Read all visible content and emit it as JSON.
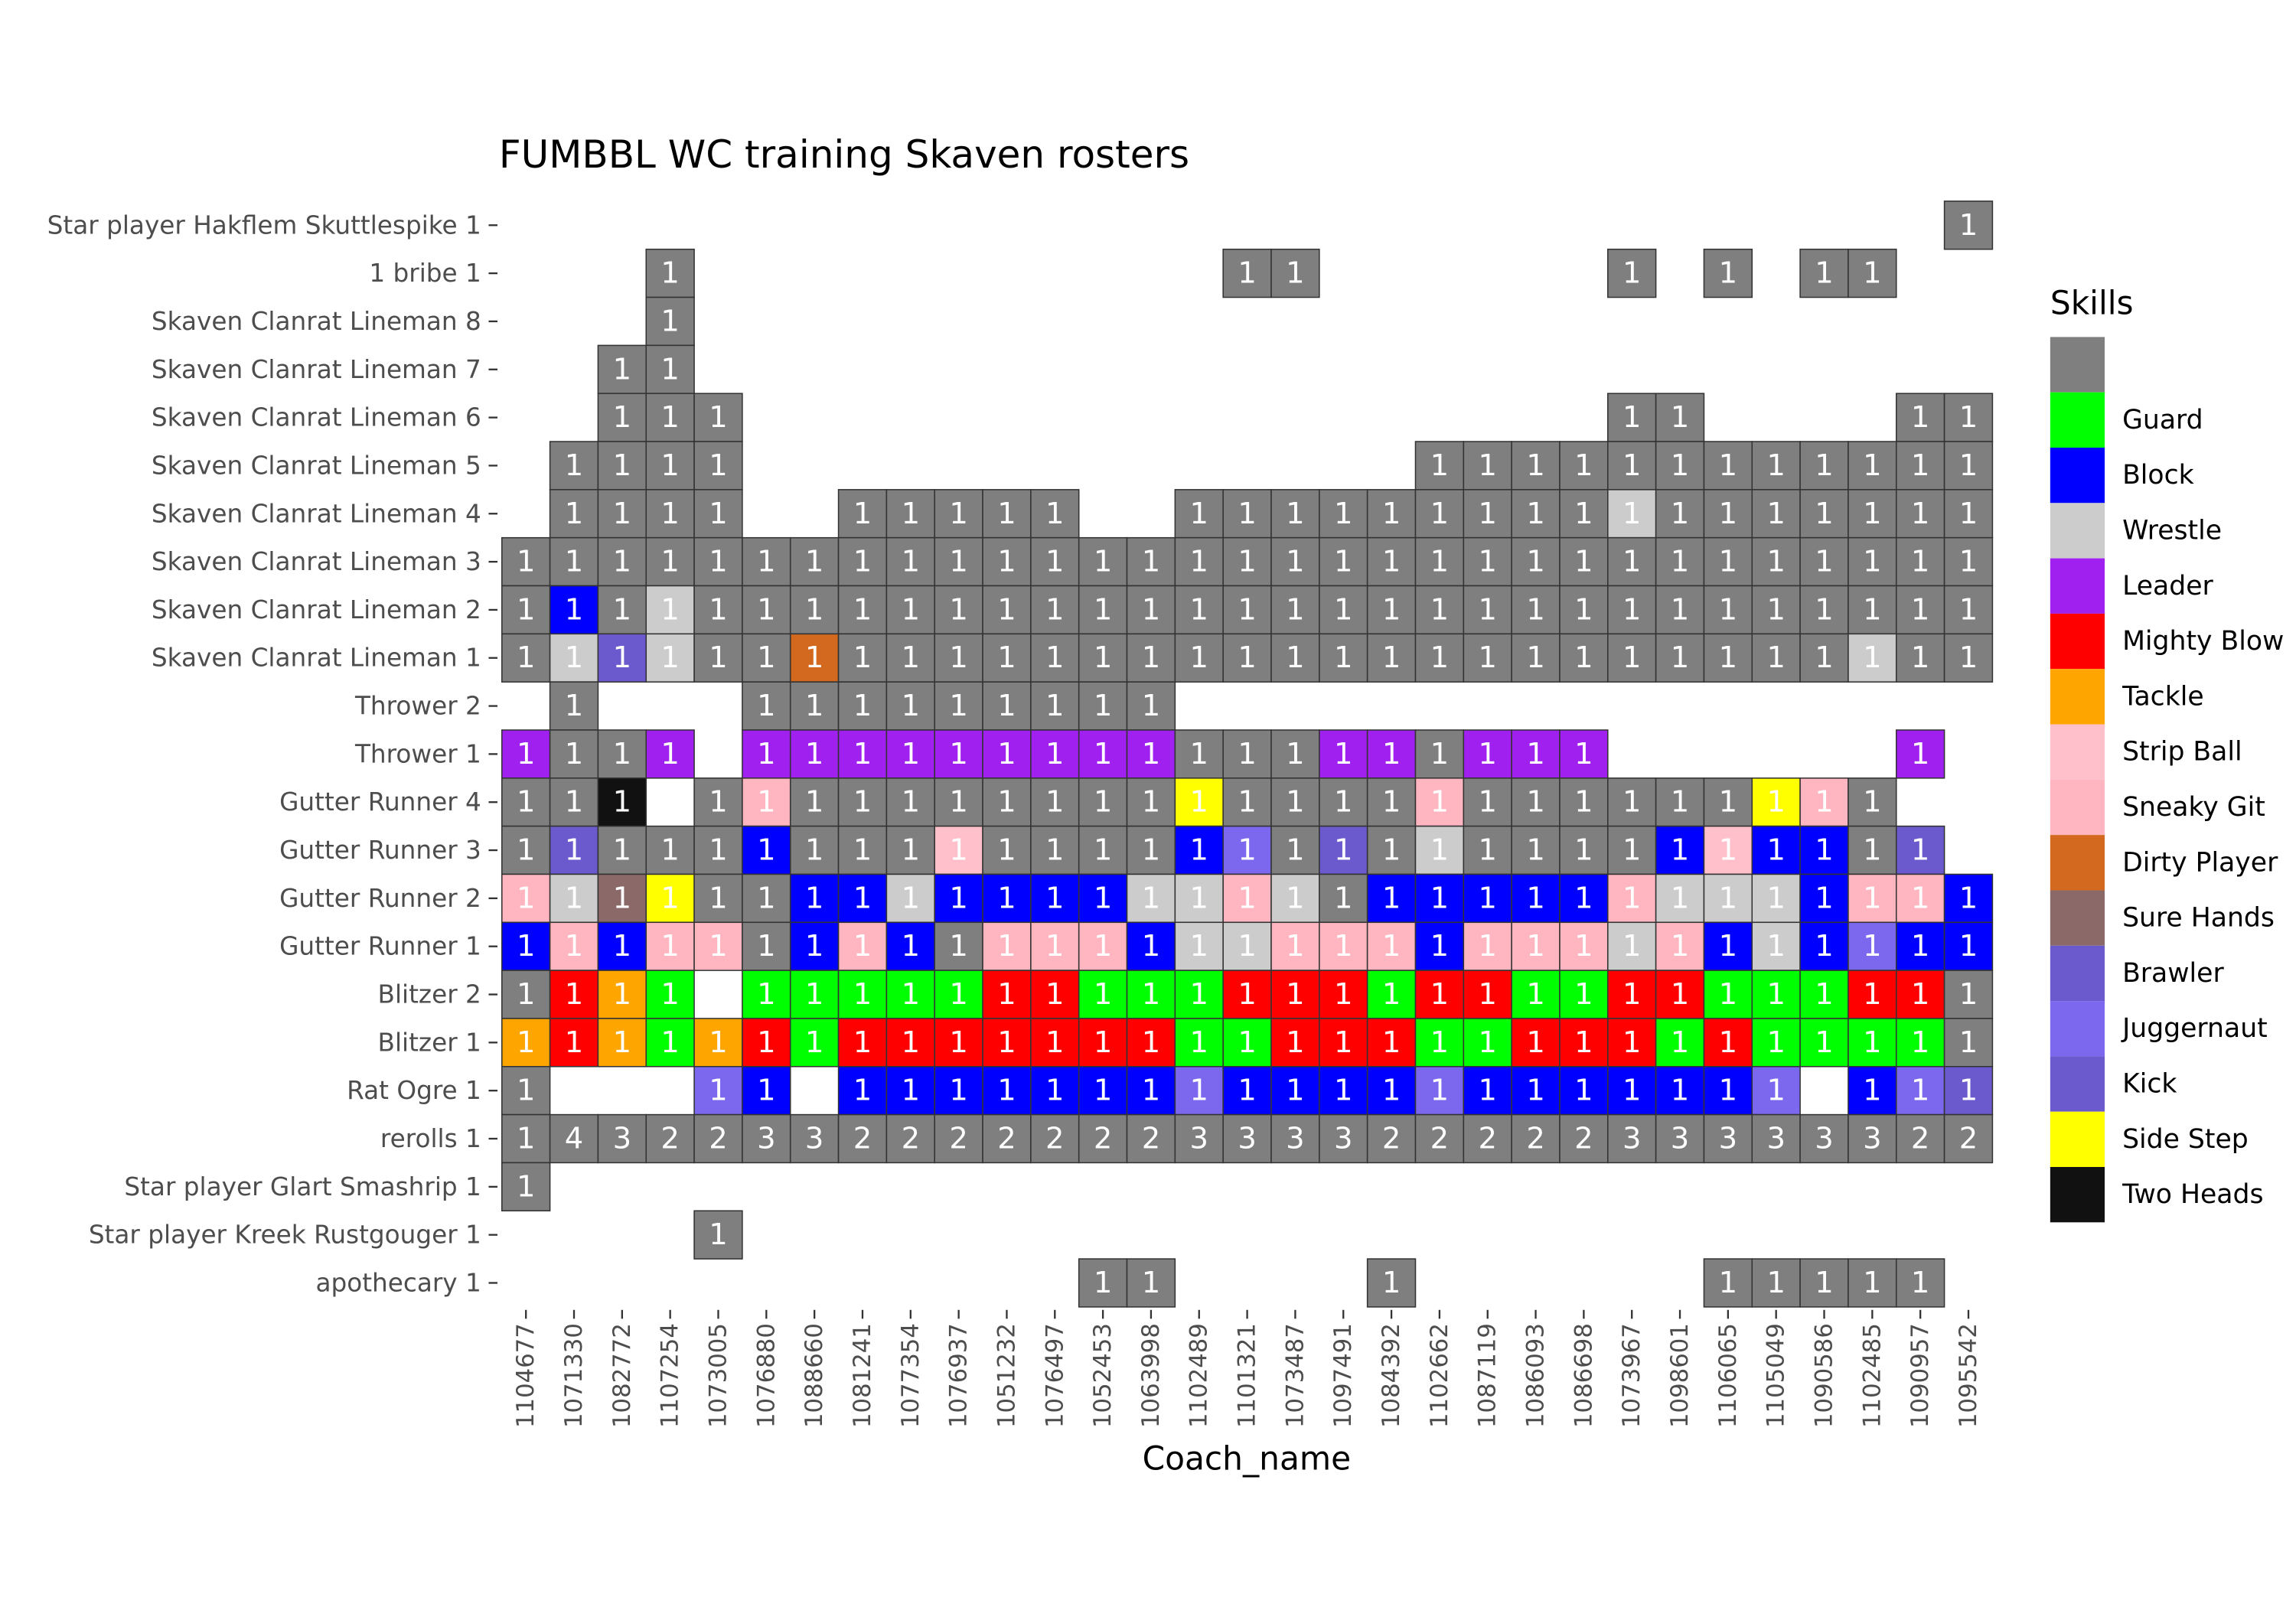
{
  "chart_data": {
    "type": "heatmap",
    "title": "FUMBBL WC training Skaven rosters",
    "x_label": "Coach_name",
    "legend_title": "Skills",
    "categories": [
      "1104677",
      "1071330",
      "1082772",
      "1107254",
      "1073005",
      "1076880",
      "1088660",
      "1081241",
      "1077354",
      "1076937",
      "1051232",
      "1076497",
      "1052453",
      "1063998",
      "1102489",
      "1101321",
      "1073487",
      "1097491",
      "1084392",
      "1102662",
      "1087119",
      "1086093",
      "1086698",
      "1073967",
      "1098601",
      "1106065",
      "1105049",
      "1090586",
      "1102485",
      "1090957",
      "1095542"
    ],
    "rows": [
      "Star player Hakflem Skuttlespike 1",
      "1 bribe 1",
      "Skaven Clanrat Lineman 8",
      "Skaven Clanrat Lineman 7",
      "Skaven Clanrat Lineman 6",
      "Skaven Clanrat Lineman 5",
      "Skaven Clanrat Lineman 4",
      "Skaven Clanrat Lineman 3",
      "Skaven Clanrat Lineman 2",
      "Skaven Clanrat Lineman 1",
      "Thrower 2",
      "Thrower 1",
      "Gutter Runner 4",
      "Gutter Runner 3",
      "Gutter Runner 2",
      "Gutter Runner 1",
      "Blitzer 2",
      "Blitzer 1",
      "Rat Ogre 1",
      "rerolls 1",
      "Star player Glart Smashrip 1",
      "Star player Kreek Rustgouger 1",
      "apothecary 1"
    ],
    "values": [
      [
        null,
        null,
        null,
        null,
        null,
        null,
        null,
        null,
        null,
        null,
        null,
        null,
        null,
        null,
        null,
        null,
        null,
        null,
        null,
        null,
        null,
        null,
        null,
        null,
        null,
        null,
        null,
        null,
        null,
        null,
        1
      ],
      [
        null,
        null,
        null,
        1,
        null,
        null,
        null,
        null,
        null,
        null,
        null,
        null,
        null,
        null,
        null,
        1,
        1,
        null,
        null,
        null,
        null,
        null,
        null,
        1,
        null,
        1,
        null,
        1,
        1,
        null,
        null
      ],
      [
        null,
        null,
        null,
        1,
        null,
        null,
        null,
        null,
        null,
        null,
        null,
        null,
        null,
        null,
        null,
        null,
        null,
        null,
        null,
        null,
        null,
        null,
        null,
        null,
        null,
        null,
        null,
        null,
        null,
        null,
        null
      ],
      [
        null,
        null,
        1,
        1,
        null,
        null,
        null,
        null,
        null,
        null,
        null,
        null,
        null,
        null,
        null,
        null,
        null,
        null,
        null,
        null,
        null,
        null,
        null,
        null,
        null,
        null,
        null,
        null,
        null,
        null,
        null
      ],
      [
        null,
        null,
        1,
        1,
        1,
        null,
        null,
        null,
        null,
        null,
        null,
        null,
        null,
        null,
        null,
        null,
        null,
        null,
        null,
        null,
        null,
        null,
        null,
        1,
        1,
        null,
        null,
        null,
        null,
        1,
        1
      ],
      [
        null,
        1,
        1,
        1,
        1,
        null,
        null,
        null,
        null,
        null,
        null,
        null,
        null,
        null,
        null,
        null,
        null,
        null,
        null,
        1,
        1,
        1,
        1,
        1,
        1,
        1,
        1,
        1,
        1,
        1,
        1
      ],
      [
        null,
        1,
        1,
        1,
        1,
        null,
        null,
        1,
        1,
        1,
        1,
        1,
        null,
        null,
        1,
        1,
        1,
        1,
        1,
        1,
        1,
        1,
        1,
        1,
        1,
        1,
        1,
        1,
        1,
        1,
        1
      ],
      [
        1,
        1,
        1,
        1,
        1,
        1,
        1,
        1,
        1,
        1,
        1,
        1,
        1,
        1,
        1,
        1,
        1,
        1,
        1,
        1,
        1,
        1,
        1,
        1,
        1,
        1,
        1,
        1,
        1,
        1,
        1
      ],
      [
        1,
        1,
        1,
        1,
        1,
        1,
        1,
        1,
        1,
        1,
        1,
        1,
        1,
        1,
        1,
        1,
        1,
        1,
        1,
        1,
        1,
        1,
        1,
        1,
        1,
        1,
        1,
        1,
        1,
        1,
        1
      ],
      [
        1,
        1,
        1,
        1,
        1,
        1,
        1,
        1,
        1,
        1,
        1,
        1,
        1,
        1,
        1,
        1,
        1,
        1,
        1,
        1,
        1,
        1,
        1,
        1,
        1,
        1,
        1,
        1,
        1,
        1,
        1
      ],
      [
        null,
        1,
        null,
        null,
        null,
        1,
        1,
        1,
        1,
        1,
        1,
        1,
        1,
        1,
        null,
        null,
        null,
        null,
        null,
        null,
        null,
        null,
        null,
        null,
        null,
        null,
        null,
        null,
        null,
        null,
        null
      ],
      [
        1,
        1,
        1,
        1,
        null,
        1,
        1,
        1,
        1,
        1,
        1,
        1,
        1,
        1,
        1,
        1,
        1,
        1,
        1,
        1,
        1,
        1,
        1,
        null,
        null,
        null,
        null,
        null,
        null,
        1,
        null
      ],
      [
        1,
        1,
        1,
        null,
        1,
        1,
        1,
        1,
        1,
        1,
        1,
        1,
        1,
        1,
        1,
        1,
        1,
        1,
        1,
        1,
        1,
        1,
        1,
        1,
        1,
        1,
        1,
        1,
        1,
        null,
        null
      ],
      [
        1,
        1,
        1,
        1,
        1,
        1,
        1,
        1,
        1,
        1,
        1,
        1,
        1,
        1,
        1,
        1,
        1,
        1,
        1,
        1,
        1,
        1,
        1,
        1,
        1,
        1,
        1,
        1,
        1,
        1,
        null
      ],
      [
        1,
        1,
        1,
        1,
        1,
        1,
        1,
        1,
        1,
        1,
        1,
        1,
        1,
        1,
        1,
        1,
        1,
        1,
        1,
        1,
        1,
        1,
        1,
        1,
        1,
        1,
        1,
        1,
        1,
        1,
        1
      ],
      [
        1,
        1,
        1,
        1,
        1,
        1,
        1,
        1,
        1,
        1,
        1,
        1,
        1,
        1,
        1,
        1,
        1,
        1,
        1,
        1,
        1,
        1,
        1,
        1,
        1,
        1,
        1,
        1,
        1,
        1,
        1
      ],
      [
        1,
        1,
        1,
        1,
        null,
        1,
        1,
        1,
        1,
        1,
        1,
        1,
        1,
        1,
        1,
        1,
        1,
        1,
        1,
        1,
        1,
        1,
        1,
        1,
        1,
        1,
        1,
        1,
        1,
        1,
        1
      ],
      [
        1,
        1,
        1,
        1,
        1,
        1,
        1,
        1,
        1,
        1,
        1,
        1,
        1,
        1,
        1,
        1,
        1,
        1,
        1,
        1,
        1,
        1,
        1,
        1,
        1,
        1,
        1,
        1,
        1,
        1,
        1
      ],
      [
        1,
        null,
        null,
        null,
        1,
        1,
        null,
        1,
        1,
        1,
        1,
        1,
        1,
        1,
        1,
        1,
        1,
        1,
        1,
        1,
        1,
        1,
        1,
        1,
        1,
        1,
        1,
        null,
        1,
        1,
        1
      ],
      [
        1,
        4,
        3,
        2,
        2,
        3,
        3,
        2,
        2,
        2,
        2,
        2,
        2,
        2,
        3,
        3,
        3,
        3,
        2,
        2,
        2,
        2,
        2,
        3,
        3,
        3,
        3,
        3,
        3,
        2,
        2
      ],
      [
        1,
        null,
        null,
        null,
        null,
        null,
        null,
        null,
        null,
        null,
        null,
        null,
        null,
        null,
        null,
        null,
        null,
        null,
        null,
        null,
        null,
        null,
        null,
        null,
        null,
        null,
        null,
        null,
        null,
        null,
        null
      ],
      [
        null,
        null,
        null,
        null,
        1,
        null,
        null,
        null,
        null,
        null,
        null,
        null,
        null,
        null,
        null,
        null,
        null,
        null,
        null,
        null,
        null,
        null,
        null,
        null,
        null,
        null,
        null,
        null,
        null,
        null,
        null
      ],
      [
        null,
        null,
        null,
        null,
        null,
        null,
        null,
        null,
        null,
        null,
        null,
        null,
        1,
        1,
        null,
        null,
        null,
        null,
        1,
        null,
        null,
        null,
        null,
        null,
        null,
        1,
        1,
        1,
        1,
        1,
        null
      ]
    ],
    "skills": [
      [],
      [],
      [],
      [],
      [],
      [],
      [
        null,
        null,
        null,
        null,
        null,
        null,
        null,
        null,
        null,
        null,
        null,
        null,
        null,
        null,
        null,
        null,
        null,
        null,
        null,
        null,
        null,
        null,
        null,
        "Wrestle"
      ],
      [],
      [
        null,
        "Block",
        null,
        "Wrestle"
      ],
      [
        null,
        "Wrestle",
        "Brawler",
        "Wrestle",
        null,
        null,
        "Dirty Player",
        null,
        null,
        null,
        null,
        null,
        null,
        null,
        null,
        null,
        null,
        null,
        null,
        null,
        null,
        null,
        null,
        null,
        null,
        null,
        null,
        null,
        "Wrestle"
      ],
      [],
      [
        "Leader",
        null,
        null,
        "Leader",
        null,
        "Leader",
        "Leader",
        "Leader",
        "Leader",
        "Leader",
        "Leader",
        "Leader",
        "Leader",
        "Leader",
        null,
        null,
        null,
        "Leader",
        "Leader",
        null,
        "Leader",
        "Leader",
        "Leader",
        null,
        null,
        null,
        null,
        null,
        null,
        "Leader"
      ],
      [
        null,
        null,
        "Two Heads",
        null,
        null,
        "Sneaky Git",
        null,
        null,
        null,
        null,
        null,
        null,
        null,
        null,
        "Side Step",
        null,
        null,
        null,
        null,
        "Sneaky Git",
        null,
        null,
        null,
        null,
        null,
        null,
        "Side Step",
        "Sneaky Git"
      ],
      [
        null,
        "Brawler",
        null,
        null,
        null,
        "Block",
        null,
        null,
        null,
        "Strip Ball",
        null,
        null,
        null,
        null,
        "Block",
        "Juggernaut",
        null,
        "Brawler",
        null,
        "Wrestle",
        null,
        null,
        null,
        null,
        "Block",
        "Strip Ball",
        "Block",
        "Block",
        null,
        "Brawler"
      ],
      [
        "Sneaky Git",
        "Wrestle",
        "Sure Hands",
        "Side Step",
        null,
        null,
        "Block",
        "Block",
        "Wrestle",
        "Block",
        "Block",
        "Block",
        "Block",
        "Wrestle",
        "Wrestle",
        "Sneaky Git",
        "Wrestle",
        null,
        "Block",
        "Block",
        "Block",
        "Block",
        "Block",
        "Sneaky Git",
        "Wrestle",
        "Wrestle",
        "Wrestle",
        "Block",
        "Sneaky Git",
        "Sneaky Git",
        "Block"
      ],
      [
        "Block",
        "Sneaky Git",
        "Block",
        "Sneaky Git",
        "Sneaky Git",
        null,
        "Block",
        "Sneaky Git",
        "Block",
        null,
        "Sneaky Git",
        "Sneaky Git",
        "Sneaky Git",
        "Block",
        "Wrestle",
        "Wrestle",
        "Sneaky Git",
        "Sneaky Git",
        "Sneaky Git",
        "Block",
        "Sneaky Git",
        "Sneaky Git",
        "Sneaky Git",
        "Wrestle",
        "Sneaky Git",
        "Block",
        "Wrestle",
        "Block",
        "Juggernaut",
        "Block",
        "Block"
      ],
      [
        null,
        "Mighty Blow",
        "Tackle",
        "Guard",
        null,
        "Guard",
        "Guard",
        "Guard",
        "Guard",
        "Guard",
        "Mighty Blow",
        "Mighty Blow",
        "Guard",
        "Guard",
        "Guard",
        "Mighty Blow",
        "Mighty Blow",
        "Mighty Blow",
        "Guard",
        "Mighty Blow",
        "Mighty Blow",
        "Guard",
        "Guard",
        "Mighty Blow",
        "Mighty Blow",
        "Guard",
        "Guard",
        "Guard",
        "Mighty Blow",
        "Mighty Blow",
        null
      ],
      [
        "Tackle",
        "Mighty Blow",
        "Tackle",
        "Guard",
        "Tackle",
        "Mighty Blow",
        "Guard",
        "Mighty Blow",
        "Mighty Blow",
        "Mighty Blow",
        "Mighty Blow",
        "Mighty Blow",
        "Mighty Blow",
        "Mighty Blow",
        "Guard",
        "Guard",
        "Mighty Blow",
        "Mighty Blow",
        "Mighty Blow",
        "Guard",
        "Guard",
        "Mighty Blow",
        "Mighty Blow",
        "Mighty Blow",
        "Guard",
        "Mighty Blow",
        "Guard",
        "Guard",
        "Guard",
        "Guard",
        null
      ],
      [
        null,
        null,
        null,
        null,
        "Juggernaut",
        "Block",
        null,
        "Block",
        "Block",
        "Block",
        "Block",
        "Block",
        "Block",
        "Block",
        "Juggernaut",
        "Block",
        "Block",
        "Block",
        "Block",
        "Juggernaut",
        "Block",
        "Block",
        "Block",
        "Block",
        "Block",
        "Block",
        "Juggernaut",
        null,
        "Block",
        "Juggernaut",
        "Brawler"
      ],
      [],
      [],
      [],
      []
    ],
    "legend": [
      {
        "name": null,
        "color": "#7f7f7f"
      },
      {
        "name": "Guard",
        "color": "#00ff00"
      },
      {
        "name": "Block",
        "color": "#0000ff"
      },
      {
        "name": "Wrestle",
        "color": "#cccccc"
      },
      {
        "name": "Leader",
        "color": "#a020f0"
      },
      {
        "name": "Mighty Blow",
        "color": "#ff0000"
      },
      {
        "name": "Tackle",
        "color": "#ffa500"
      },
      {
        "name": "Strip Ball",
        "color": "#ffc0cb"
      },
      {
        "name": "Sneaky Git",
        "color": "#ffb6c1"
      },
      {
        "name": "Dirty Player",
        "color": "#d2691e"
      },
      {
        "name": "Sure Hands",
        "color": "#8b6969"
      },
      {
        "name": "Brawler",
        "color": "#6a5acd"
      },
      {
        "name": "Juggernaut",
        "color": "#7b68ee"
      },
      {
        "name": "Kick",
        "color": "#6a5acd"
      },
      {
        "name": "Side Step",
        "color": "#ffff00"
      },
      {
        "name": "Two Heads",
        "color": "#111111"
      }
    ]
  }
}
